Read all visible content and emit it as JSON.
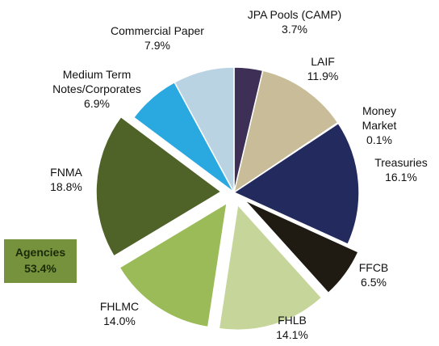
{
  "chart_data": {
    "type": "pie",
    "categories": [
      "JPA Pools (CAMP)",
      "LAIF",
      "Money Market",
      "Treasuries",
      "FFCB",
      "FHLB",
      "FHLMC",
      "FNMA",
      "Medium Term\nNotes/Corporates",
      "Commercial Paper"
    ],
    "values": [
      3.7,
      11.9,
      0.1,
      16.1,
      6.5,
      14.1,
      14.0,
      18.8,
      6.9,
      7.9
    ],
    "value_labels": [
      "3.7%",
      "11.9%",
      "0.1%",
      "16.1%",
      "6.5%",
      "14.1%",
      "14.0%",
      "18.8%",
      "6.9%",
      "7.9%"
    ],
    "colors": [
      "#3d2f55",
      "#c8bd98",
      "#e6d870",
      "#232a5e",
      "#1f1a12",
      "#c6d69a",
      "#9bbb59",
      "#4f6228",
      "#2aa8e0",
      "#b9d3e3"
    ],
    "exploded": [
      false,
      false,
      false,
      false,
      true,
      true,
      true,
      true,
      false,
      false
    ],
    "annotation": {
      "text": "Agencies",
      "value": 53.4,
      "value_label": "53.4%",
      "color": "#76923c"
    }
  }
}
